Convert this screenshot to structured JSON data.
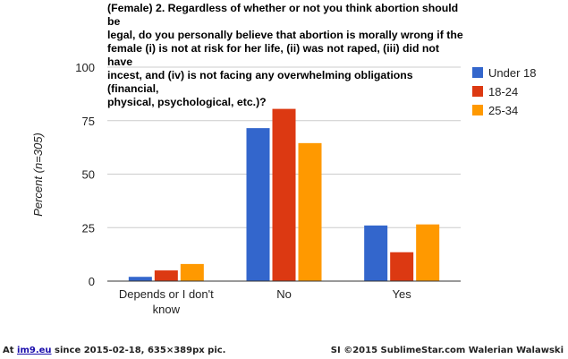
{
  "chart_data": {
    "type": "bar",
    "title_lines": [
      "(Female) 2. Regardless of whether or not you think abortion should be",
      "legal, do you personally believe that abortion is morally wrong if the",
      "female (i) is not at risk for her life, (ii) was not raped, (iii) did not have",
      "incest, and (iv) is not facing any overwhelming obligations (financial,",
      "physical, psychological, etc.)?"
    ],
    "ylabel": "Percent (n=305)",
    "xlabel": "",
    "ylim": [
      0,
      100
    ],
    "yticks": [
      0,
      25,
      50,
      75,
      100
    ],
    "grid": true,
    "legend_position": "right",
    "categories": [
      [
        "Depends or I don't",
        "know"
      ],
      [
        "No"
      ],
      [
        "Yes"
      ]
    ],
    "series": [
      {
        "name": "Under 18",
        "color": "#3366cc",
        "values": [
          2,
          71.5,
          26
        ]
      },
      {
        "name": "18-24",
        "color": "#dc3912",
        "values": [
          5,
          80.5,
          13.5
        ]
      },
      {
        "name": "25-34",
        "color": "#ff9900",
        "values": [
          8,
          64.5,
          26.5
        ]
      }
    ]
  },
  "footer": {
    "left_prefix": "At",
    "left_link": "im9.eu",
    "left_suffix": "since 2015-02-18, 635×389px pic.",
    "right": "SI ©2015 SublimeStar.com Walerian Walawski"
  }
}
